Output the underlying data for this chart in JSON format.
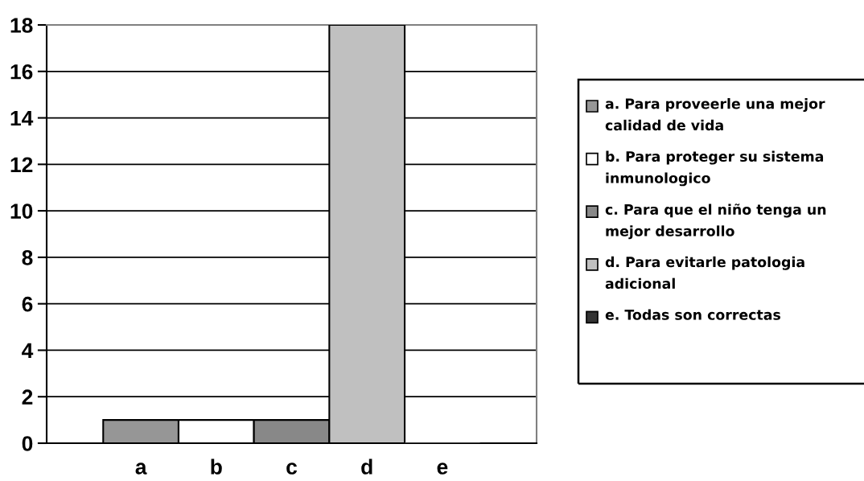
{
  "chart_data": {
    "type": "bar",
    "stacked": true,
    "categories": [
      "a",
      "b",
      "c",
      "d",
      "e"
    ],
    "series": [
      {
        "name": "a. Para proveerle una mejor calidad de vida",
        "color": "#969696",
        "values": [
          1,
          null,
          null,
          null,
          null
        ]
      },
      {
        "name": "b. Para proteger su sistema inmunologico",
        "color": "#ffffff",
        "values": [
          null,
          1,
          null,
          null,
          null
        ]
      },
      {
        "name": "c. Para que el niño tenga un mejor desarrollo",
        "color": "#888888",
        "values": [
          null,
          null,
          1,
          null,
          null
        ]
      },
      {
        "name": "d. Para evitarle patologia adicional",
        "color": "#c0c0c0",
        "values": [
          null,
          null,
          null,
          18,
          null
        ]
      },
      {
        "name": "e. Todas son correctas",
        "color": "#333333",
        "values": [
          null,
          null,
          null,
          null,
          0
        ]
      }
    ],
    "ylim": [
      0,
      18
    ],
    "yticks": [
      0,
      2,
      4,
      6,
      8,
      10,
      12,
      14,
      16,
      18
    ],
    "grid": "y",
    "legend": "right"
  }
}
